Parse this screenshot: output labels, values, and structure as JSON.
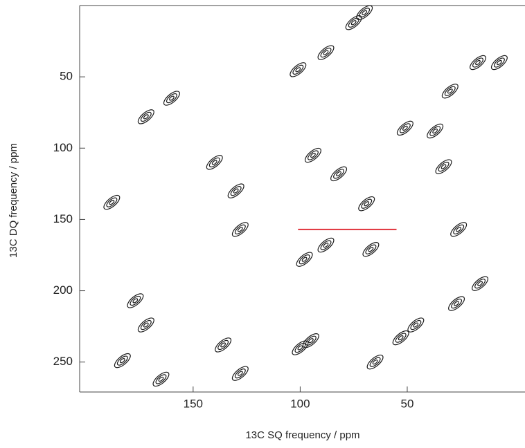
{
  "chart_data": {
    "type": "contour",
    "xlabel": "13C SQ frequency / ppm",
    "ylabel": "13C DQ frequency / ppm",
    "xlim": [
      203,
      -5
    ],
    "ylim": [
      0,
      271
    ],
    "xticks": [
      150,
      100,
      50
    ],
    "yticks": [
      50,
      100,
      150,
      200,
      250
    ],
    "peaks": {
      "color": "#1a1a1a",
      "x": [
        75,
        70,
        88,
        30,
        17,
        7,
        51,
        37,
        33,
        82,
        69,
        88,
        98,
        67,
        177,
        172,
        183,
        16,
        27,
        46,
        53,
        65,
        160,
        172,
        140,
        130,
        128,
        188,
        101,
        94,
        26,
        165,
        136,
        128,
        95,
        100
      ],
      "y": [
        12,
        5,
        33,
        60,
        40,
        40,
        86,
        88,
        113,
        118,
        139,
        168,
        178,
        171,
        207,
        224,
        249,
        195,
        209,
        224,
        233,
        250,
        65,
        78,
        110,
        130,
        157,
        138,
        45,
        105,
        157,
        262,
        238,
        258,
        235,
        240
      ]
    },
    "line": {
      "color": "#e0303a",
      "x": [
        101,
        55
      ],
      "y": [
        157,
        157
      ]
    }
  }
}
